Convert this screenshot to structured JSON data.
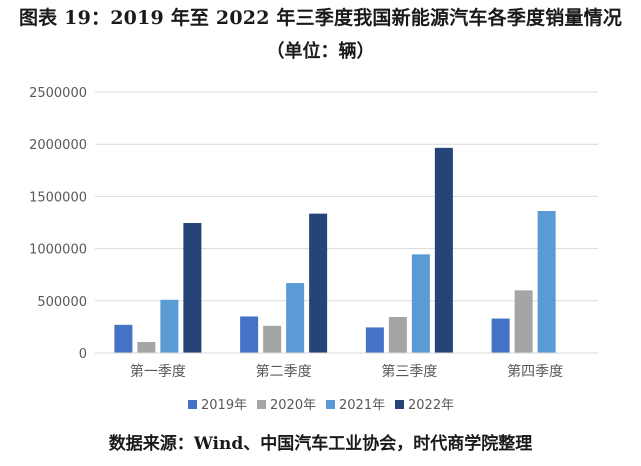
{
  "header": {
    "title": "图表 19：2019 年至 2022 年三季度我国新能源汽车各季度销量情况",
    "subtitle": "（单位：辆）"
  },
  "footer": {
    "source": "数据来源：Wind、中国汽车工业协会，时代商学院整理"
  },
  "colors": {
    "2019年": "#4472c4",
    "2020年": "#a5a5a5",
    "2021年": "#5b9bd5",
    "2022年": "#264478",
    "grid": "#d9d9d9",
    "axis_text": "#595959"
  },
  "chart_data": {
    "type": "bar",
    "title": "",
    "xlabel": "",
    "ylabel": "",
    "categories": [
      "第一季度",
      "第二季度",
      "第三季度",
      "第四季度"
    ],
    "series": [
      {
        "name": "2019年",
        "values": [
          270000,
          350000,
          245000,
          330000
        ]
      },
      {
        "name": "2020年",
        "values": [
          105000,
          260000,
          345000,
          600000
        ]
      },
      {
        "name": "2021年",
        "values": [
          510000,
          670000,
          945000,
          1360000
        ]
      },
      {
        "name": "2022年",
        "values": [
          1245000,
          1335000,
          1965000,
          null
        ]
      }
    ],
    "ylim": [
      0,
      2500000
    ],
    "yticks": [
      0,
      500000,
      1000000,
      1500000,
      2000000,
      2500000
    ],
    "ytick_labels": [
      "0",
      "500000",
      "1000000",
      "1500000",
      "2000000",
      "2500000"
    ],
    "grid": true,
    "legend": "bottom"
  }
}
